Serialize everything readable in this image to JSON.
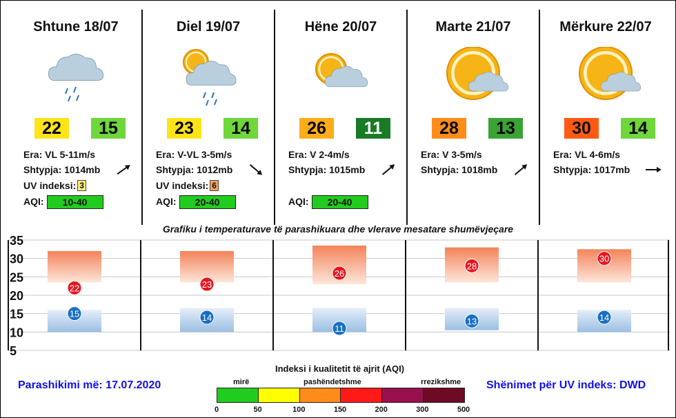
{
  "days": [
    {
      "title": "Shtune 18/07",
      "icon": "rain-cloud-icon",
      "max": "22",
      "min": "15",
      "max_color": "#ffe41a",
      "min_color": "#6fd63c",
      "wind": "Era: VL 5-11m/s",
      "pressure": "Shtypja: 1014mb",
      "arrow_angle": -35,
      "uv_label": "UV indeksi:",
      "uv": "3",
      "uv_color": "#fff176",
      "aqi_label": "AQI:",
      "aqi": "10-40"
    },
    {
      "title": "Diel 19/07",
      "icon": "sun-rain-cloud-icon",
      "max": "23",
      "min": "14",
      "max_color": "#ffe41a",
      "min_color": "#6fd63c",
      "wind": "Era: V-VL 3-5m/s",
      "pressure": "Shtypja: 1012mb",
      "arrow_angle": 40,
      "uv_label": "UV indeksi:",
      "uv": "6",
      "uv_color": "#f4a460",
      "aqi_label": "AQI:",
      "aqi": "20-40"
    },
    {
      "title": "Hëne 20/07",
      "icon": "sun-cloud-icon",
      "max": "26",
      "min": "11",
      "max_color": "#ffad1a",
      "min_color": "#1a7a26",
      "wind": "Era: V 2-4m/s",
      "pressure": "Shtypja: 1015mb",
      "arrow_angle": -40,
      "uv_label": "",
      "uv": "",
      "uv_color": "",
      "aqi_label": "AQI:",
      "aqi": "20-40"
    },
    {
      "title": "Marte 21/07",
      "icon": "sun-cloud-icon",
      "max": "28",
      "min": "13",
      "max_color": "#ff8c1a",
      "min_color": "#3aa334",
      "wind": "Era: V 3-5m/s",
      "pressure": "Shtypja: 1018mb",
      "arrow_angle": -40,
      "uv_label": "",
      "uv": "",
      "uv_color": "",
      "aqi_label": "",
      "aqi": ""
    },
    {
      "title": "Mërkure 22/07",
      "icon": "sun-cloud-icon",
      "max": "30",
      "min": "14",
      "max_color": "#ff5a14",
      "min_color": "#6fd63c",
      "wind": "Era: VL 4-6m/s",
      "pressure": "Shtypja: 1017mb",
      "arrow_angle": 0,
      "uv_label": "",
      "uv": "",
      "uv_color": "",
      "aqi_label": "",
      "aqi": ""
    }
  ],
  "chart_title": "Grafiku i temperaturave të parashikuara dhe vlerave mesatare shumëvjeçare",
  "chart_data": {
    "type": "scatter",
    "categories": [
      "Shtune 18/07",
      "Diel 19/07",
      "Hëne 20/07",
      "Marte 21/07",
      "Mërkure 22/07"
    ],
    "series": [
      {
        "values": [
          22,
          23,
          26,
          28,
          30
        ],
        "color": "#e8141e"
      },
      {
        "values": [
          15,
          14,
          11,
          13,
          14
        ],
        "color": "#1a6fc4"
      }
    ],
    "avg_max_ranges": [
      [
        23.5,
        32
      ],
      [
        23.5,
        32
      ],
      [
        23,
        33.5
      ],
      [
        23.5,
        33
      ],
      [
        23.5,
        32.5
      ]
    ],
    "avg_min_ranges": [
      [
        10,
        16
      ],
      [
        10,
        16.5
      ],
      [
        10,
        16.5
      ],
      [
        10.5,
        16.5
      ],
      [
        10,
        16
      ]
    ],
    "yticks": [
      "35",
      "30",
      "25",
      "20",
      "15",
      "10",
      "5"
    ],
    "ylim": [
      5,
      35
    ]
  },
  "aqi_legend": {
    "title": "Indeksi i kualitetit të ajrit (AQI)",
    "labels": [
      "mirë",
      "pashëndetshme",
      "rrezikshme"
    ],
    "colors": [
      "#22cc1f",
      "#ffff00",
      "#ff8c1a",
      "#ff1a1a",
      "#99104f",
      "#6e0a23"
    ],
    "ticks": [
      "0",
      "50",
      "100",
      "150",
      "200",
      "300",
      "500"
    ]
  },
  "footer": {
    "forecast": "Parashikimi më: 17.07.2020",
    "uv_note": "Shënimet për UV indeks: DWD"
  }
}
